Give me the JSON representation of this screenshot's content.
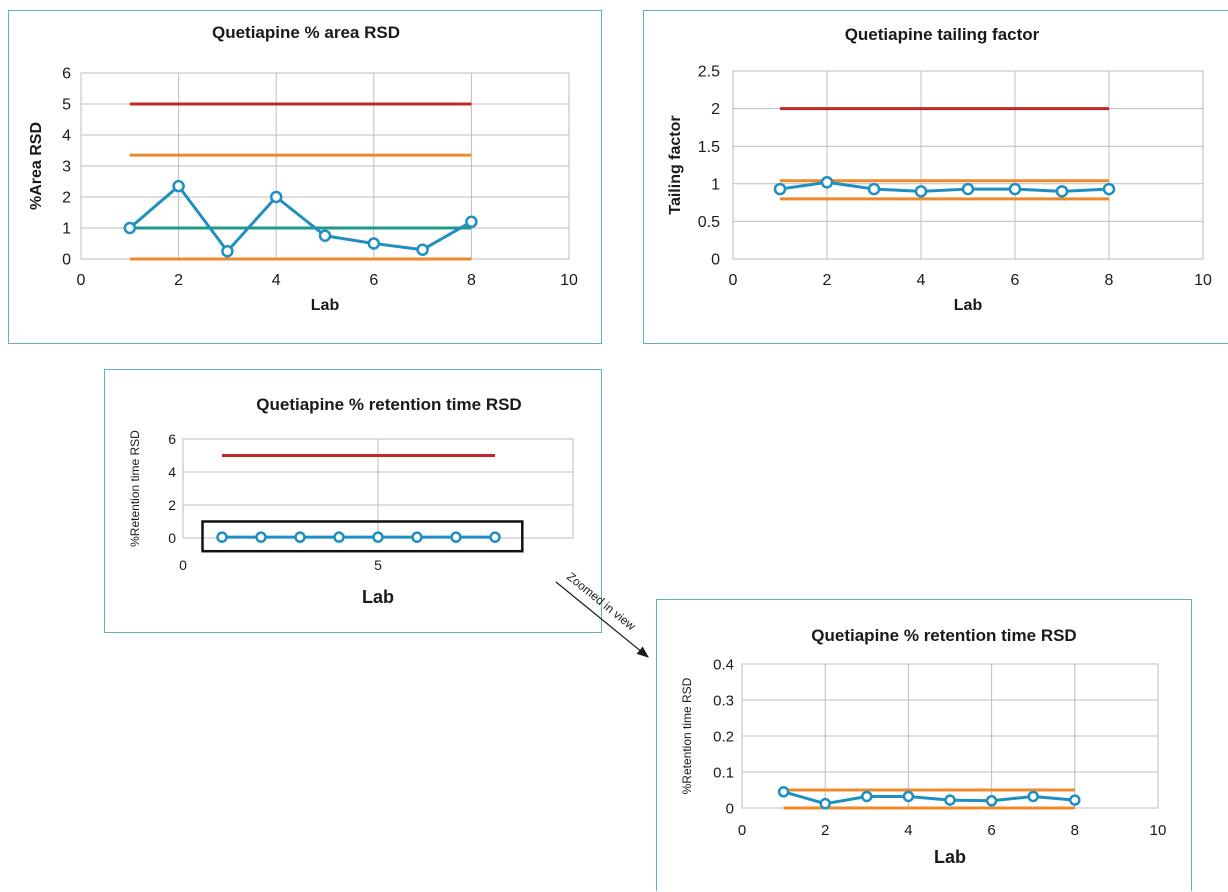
{
  "chart_data": [
    {
      "type": "line",
      "title": "Quetiapine % area RSD",
      "xlabel": "Lab",
      "ylabel": "%Area RSD",
      "xlim": [
        0,
        10
      ],
      "ylim": [
        0,
        6
      ],
      "xticks": [
        0,
        2,
        4,
        6,
        8,
        10
      ],
      "yticks": [
        0,
        1,
        2,
        3,
        4,
        5,
        6
      ],
      "grid": true,
      "series": [
        {
          "color": "#1f8fc2",
          "markers": true,
          "x": [
            1,
            2,
            3,
            4,
            5,
            6,
            7,
            8
          ],
          "y": [
            1.0,
            2.35,
            0.25,
            2.0,
            0.75,
            0.5,
            0.3,
            1.2
          ]
        }
      ],
      "reference_lines": [
        {
          "y": 5.0,
          "x_range": [
            1,
            8
          ],
          "color": "#c0282b"
        },
        {
          "y": 3.35,
          "x_range": [
            1,
            8
          ],
          "color": "#ee8a2c"
        },
        {
          "y": 1.0,
          "x_range": [
            1,
            8
          ],
          "color": "#1e9a86"
        },
        {
          "y": 0.0,
          "x_range": [
            1,
            8
          ],
          "color": "#ee8a2c"
        }
      ]
    },
    {
      "type": "line",
      "title": "Quetiapine tailing factor",
      "xlabel": "Lab",
      "ylabel": "Tailing factor",
      "xlim": [
        0,
        10
      ],
      "ylim": [
        0,
        2.5
      ],
      "xticks": [
        0,
        2,
        4,
        6,
        8,
        10
      ],
      "yticks": [
        0,
        0.5,
        1,
        1.5,
        2,
        2.5
      ],
      "grid": true,
      "series": [
        {
          "color": "#1f8fc2",
          "markers": true,
          "x": [
            1,
            2,
            3,
            4,
            5,
            6,
            7,
            8
          ],
          "y": [
            0.93,
            1.02,
            0.93,
            0.9,
            0.93,
            0.93,
            0.9,
            0.93
          ]
        }
      ],
      "reference_lines": [
        {
          "y": 2.0,
          "x_range": [
            1,
            8
          ],
          "color": "#c0282b"
        },
        {
          "y": 1.04,
          "x_range": [
            1,
            8
          ],
          "color": "#ee8a2c"
        },
        {
          "y": 0.8,
          "x_range": [
            1,
            8
          ],
          "color": "#ee8a2c"
        }
      ]
    },
    {
      "type": "line",
      "title": "Quetiapine % retention time RSD",
      "xlabel": "Lab",
      "ylabel": "%Retention time RSD",
      "xlim": [
        0,
        10
      ],
      "ylim": [
        0,
        6
      ],
      "xticks": [
        0,
        5
      ],
      "yticks": [
        0,
        2,
        4,
        6
      ],
      "grid": true,
      "series": [
        {
          "color": "#1f8fc2",
          "markers": true,
          "x": [
            1,
            2,
            3,
            4,
            5,
            6,
            7,
            8
          ],
          "y": [
            0.05,
            0.05,
            0.05,
            0.05,
            0.05,
            0.05,
            0.05,
            0.05
          ]
        }
      ],
      "reference_lines": [
        {
          "y": 5.0,
          "x_range": [
            1,
            8
          ],
          "color": "#c0282b"
        }
      ],
      "highlight_box": {
        "x_range": [
          0.5,
          8.7
        ],
        "y_range": [
          -0.8,
          1.0
        ]
      }
    },
    {
      "type": "line",
      "title": "Quetiapine % retention time RSD",
      "xlabel": "Lab",
      "ylabel": "%Retention time RSD",
      "xlim": [
        0,
        10
      ],
      "ylim": [
        0,
        0.4
      ],
      "xticks": [
        0,
        2,
        4,
        6,
        8,
        10
      ],
      "yticks": [
        0,
        0.1,
        0.2,
        0.3,
        0.4
      ],
      "grid": true,
      "series": [
        {
          "color": "#1f8fc2",
          "markers": true,
          "x": [
            1,
            2,
            3,
            4,
            5,
            6,
            7,
            8
          ],
          "y": [
            0.045,
            0.012,
            0.032,
            0.032,
            0.022,
            0.02,
            0.032,
            0.022
          ]
        }
      ],
      "reference_lines": [
        {
          "y": 0.05,
          "x_range": [
            1,
            8
          ],
          "color": "#ee8a2c"
        },
        {
          "y": 0.0,
          "x_range": [
            1,
            8
          ],
          "color": "#ee8a2c"
        }
      ]
    }
  ],
  "annotation": {
    "text": "Zoomed in view"
  }
}
